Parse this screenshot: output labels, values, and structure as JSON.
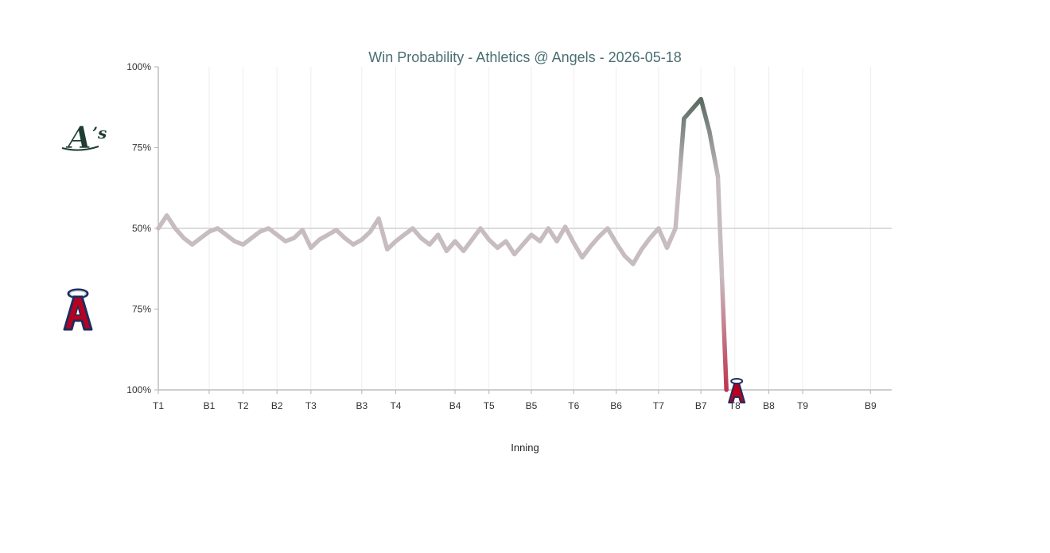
{
  "chart_data": {
    "type": "line",
    "title": "Win Probability - Athletics @ Angels - 2026-05-18",
    "xlabel": "Inning",
    "ylabel": "",
    "y_axis_scale": "two-sided win probability: top = Athletics win probability, bottom = Angels win probability, 50% at center",
    "y_tick_labels": [
      "100%",
      "75%",
      "50%",
      "75%",
      "100%"
    ],
    "x_tick_labels": [
      {
        "label": "T1",
        "index": 0
      },
      {
        "label": "B1",
        "index": 6
      },
      {
        "label": "T2",
        "index": 10
      },
      {
        "label": "B2",
        "index": 14
      },
      {
        "label": "T3",
        "index": 18
      },
      {
        "label": "B3",
        "index": 24
      },
      {
        "label": "T4",
        "index": 28
      },
      {
        "label": "B4",
        "index": 35
      },
      {
        "label": "T5",
        "index": 39
      },
      {
        "label": "B5",
        "index": 44
      },
      {
        "label": "T6",
        "index": 49
      },
      {
        "label": "B6",
        "index": 54
      },
      {
        "label": "T7",
        "index": 59
      },
      {
        "label": "B7",
        "index": 64
      },
      {
        "label": "T8",
        "index": 68
      },
      {
        "label": "B8",
        "index": 72
      },
      {
        "label": "T9",
        "index": 76
      },
      {
        "label": "B9",
        "index": 84
      }
    ],
    "x_max_index": 86.5,
    "series": [
      {
        "values": [
          50,
          54,
          50,
          47,
          45,
          47,
          49,
          50,
          48,
          46,
          45,
          47,
          49,
          50,
          48,
          46,
          47,
          49.5,
          44,
          46.5,
          48,
          49.5,
          47,
          45,
          46.5,
          49,
          53,
          43.5,
          46,
          48,
          50,
          47,
          45,
          48,
          43,
          46,
          43,
          46.5,
          50,
          46.5,
          44,
          46,
          42,
          45,
          48,
          46,
          50,
          46,
          50.5,
          45.5,
          41,
          44.5,
          47.5,
          50,
          45.5,
          41.5,
          39,
          43.5,
          47,
          50,
          44,
          50,
          84,
          87,
          90,
          80,
          66,
          0
        ]
      }
    ],
    "teams": {
      "top": {
        "name": "Athletics",
        "color": "#2e4a3e",
        "logo": "athletics-logo"
      },
      "bottom": {
        "name": "Angels",
        "color": "#c0334f",
        "logo": "angels-logo"
      }
    },
    "neutral_color": "#c7bcbf",
    "grid": "vertical-lines",
    "legend": "none"
  }
}
